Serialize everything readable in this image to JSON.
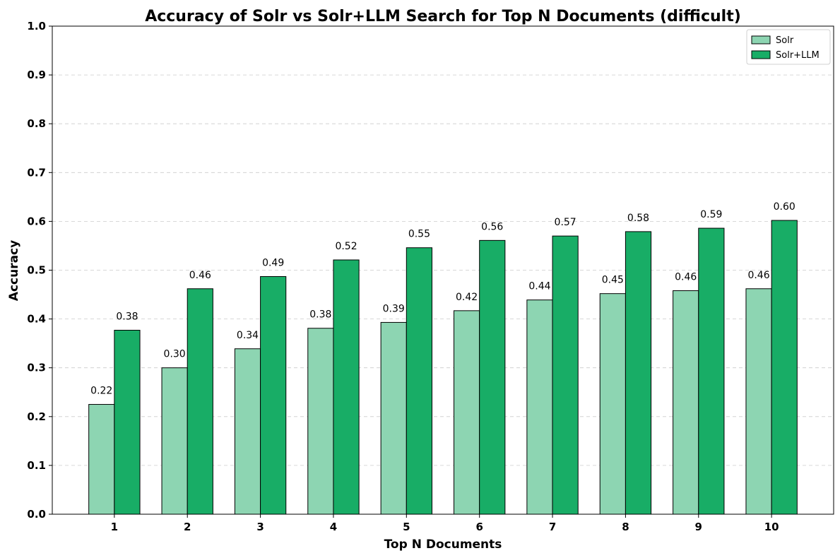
{
  "chart_data": {
    "type": "bar",
    "title": "Accuracy of Solr vs Solr+LLM Search for Top N Documents (difficult)",
    "xlabel": "Top N Documents",
    "ylabel": "Accuracy",
    "categories": [
      "1",
      "2",
      "3",
      "4",
      "5",
      "6",
      "7",
      "8",
      "9",
      "10"
    ],
    "ylim": [
      0,
      1.0
    ],
    "yticks": [
      "0.0",
      "0.1",
      "0.2",
      "0.3",
      "0.4",
      "0.5",
      "0.6",
      "0.7",
      "0.8",
      "0.9",
      "1.0"
    ],
    "grid": "horizontal-dashed",
    "legend_position": "top-right",
    "series": [
      {
        "name": "Solr",
        "color": "#8dd5b2",
        "values": [
          0.225,
          0.3,
          0.339,
          0.381,
          0.393,
          0.417,
          0.439,
          0.452,
          0.458,
          0.462
        ],
        "labels": [
          "0.22",
          "0.30",
          "0.34",
          "0.38",
          "0.39",
          "0.42",
          "0.44",
          "0.45",
          "0.46",
          "0.46"
        ]
      },
      {
        "name": "Solr+LLM",
        "color": "#18ad66",
        "values": [
          0.377,
          0.462,
          0.487,
          0.521,
          0.546,
          0.561,
          0.57,
          0.579,
          0.586,
          0.602
        ],
        "labels": [
          "0.38",
          "0.46",
          "0.49",
          "0.52",
          "0.55",
          "0.56",
          "0.57",
          "0.58",
          "0.59",
          "0.60"
        ]
      }
    ]
  }
}
